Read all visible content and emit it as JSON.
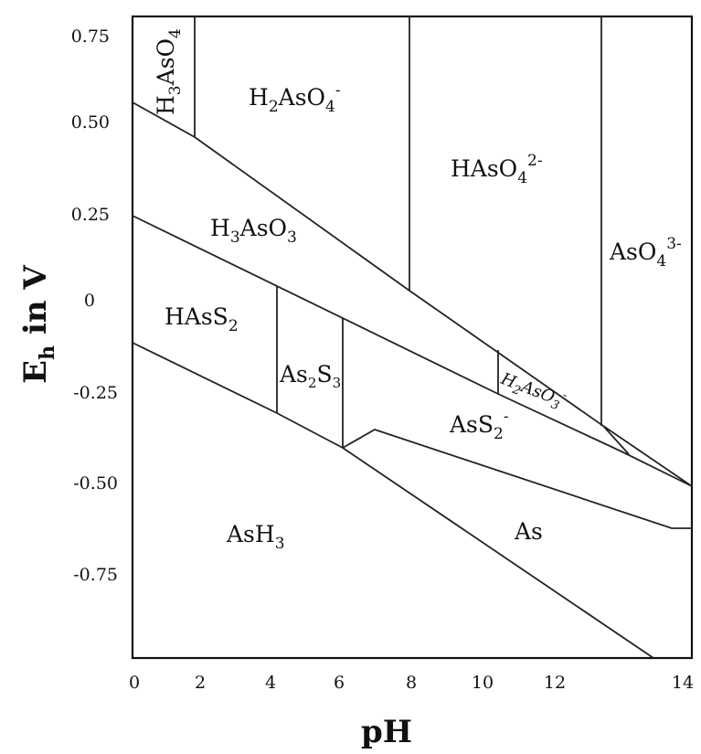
{
  "diagram": {
    "x_axis": {
      "title": "pH",
      "ticks": [
        "0",
        "2",
        "4",
        "6",
        "8",
        "10",
        "12",
        "14"
      ]
    },
    "y_axis": {
      "title_main": "E",
      "title_sub": "h",
      "title_rest": " in V",
      "ticks": [
        "0.75",
        "0.50",
        "0.25",
        "0",
        "-0.25",
        "-0.50",
        "-0.75"
      ]
    },
    "regions": {
      "h3aso4": {
        "main": "H",
        "sub1": "3",
        "mid": "AsO",
        "sub2": "4"
      },
      "h2aso4": {
        "main": "H",
        "sub1": "2",
        "mid": "AsO",
        "sub2": "4",
        "sup": "-"
      },
      "haso4": {
        "main": "HAsO",
        "sub": "4",
        "sup": "2-"
      },
      "aso4": {
        "main": "AsO",
        "sub": "4",
        "sup": "3-"
      },
      "h3aso3": {
        "main": "H",
        "sub1": "3",
        "mid": "AsO",
        "sub2": "3"
      },
      "hass2": {
        "main": "HAsS",
        "sub": "2"
      },
      "as2s3": {
        "main": "As",
        "sub1": "2",
        "mid": "S",
        "sub2": "3"
      },
      "h2aso3": {
        "main": "H",
        "sub1": "2",
        "mid": "AsO",
        "sub2": "3",
        "sup": "-"
      },
      "ass2": {
        "main": "AsS",
        "sub": "2",
        "sup": "-"
      },
      "ash3": {
        "main": "AsH",
        "sub": "3"
      },
      "as": {
        "main": "As"
      }
    }
  }
}
